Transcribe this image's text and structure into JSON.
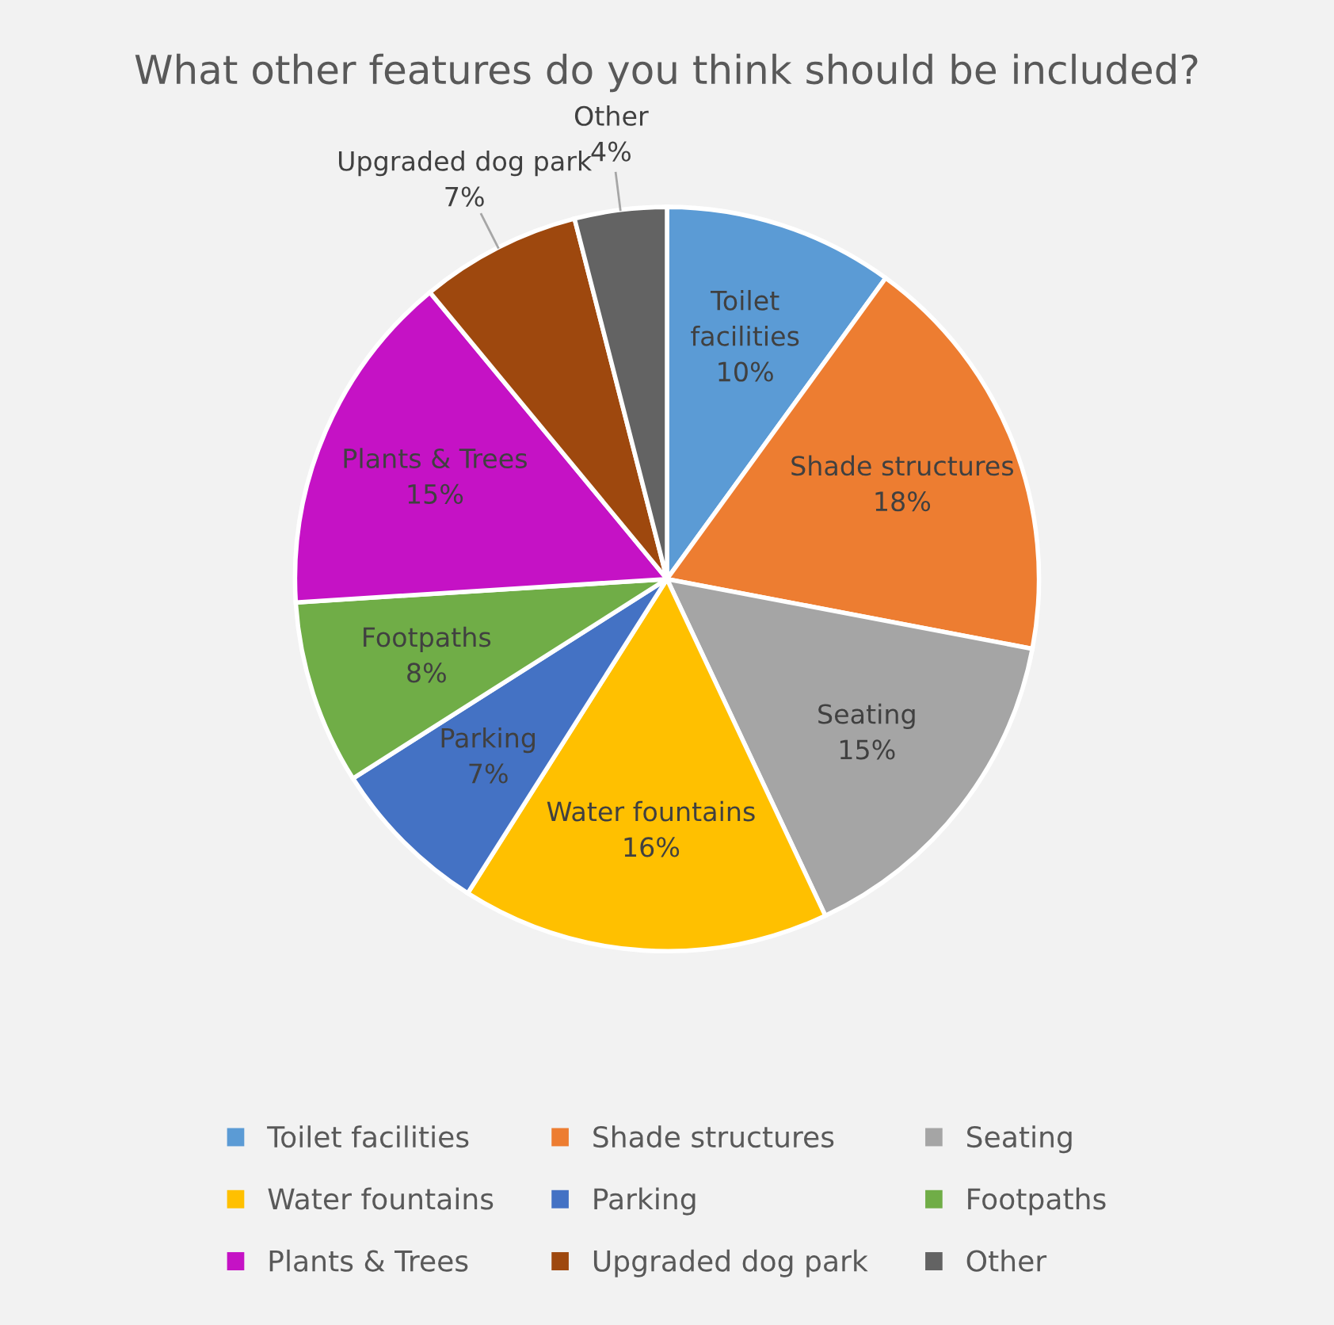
{
  "chart_data": {
    "type": "pie",
    "title": "What other features do you think should be included?",
    "categories": [
      "Toilet facilities",
      "Shade structures",
      "Seating",
      "Water fountains",
      "Parking",
      "Footpaths",
      "Plants & Trees",
      "Upgraded dog park",
      "Other"
    ],
    "values": [
      10,
      18,
      15,
      16,
      7,
      8,
      15,
      7,
      4
    ],
    "colors": [
      "#5b9bd5",
      "#ed7d31",
      "#a5a5a5",
      "#ffc000",
      "#4472c4",
      "#70ad47",
      "#c512c5",
      "#9e480e",
      "#636363"
    ],
    "value_labels": [
      "10%",
      "18%",
      "15%",
      "16%",
      "7%",
      "8%",
      "15%",
      "7%",
      "4%"
    ],
    "legend": "bottom"
  }
}
